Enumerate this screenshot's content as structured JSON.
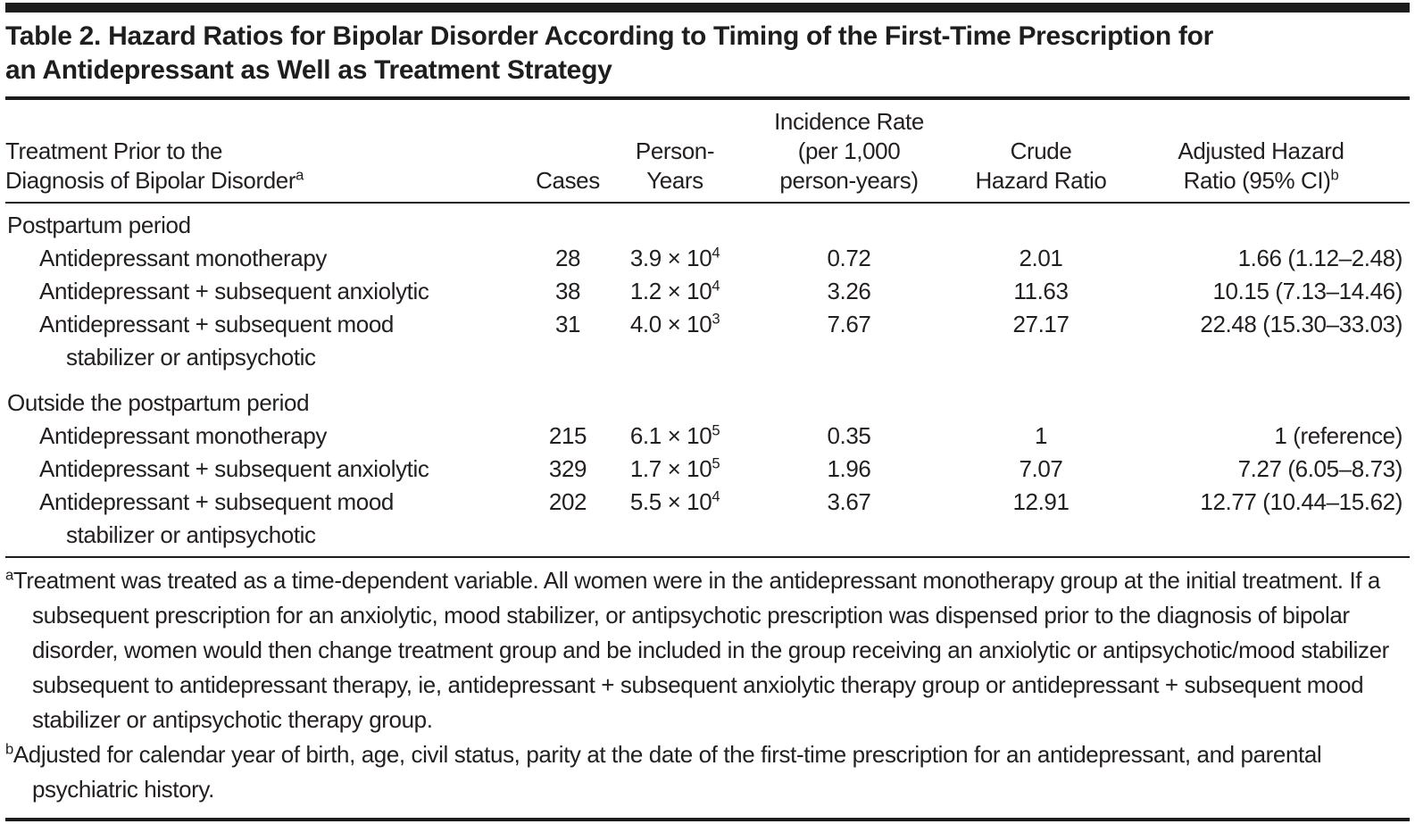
{
  "title": {
    "line1": "Table 2. Hazard Ratios for Bipolar Disorder According to Timing of the First-Time Prescription for",
    "line2": "an Antidepressant as Well as Treatment Strategy"
  },
  "header": {
    "col_treatment": {
      "line1": "Treatment Prior to the",
      "line2": "Diagnosis of Bipolar Disorder",
      "sup": "a"
    },
    "col_cases": "Cases",
    "col_person_years": {
      "line1": "Person-",
      "line2": "Years"
    },
    "col_incidence": {
      "line1": "Incidence Rate",
      "line2": "(per 1,000",
      "line3": "person-years)"
    },
    "col_crude": {
      "line1": "Crude",
      "line2": "Hazard Ratio"
    },
    "col_adjusted": {
      "line1": "Adjusted Hazard",
      "line2": "Ratio (95% CI)",
      "sup": "b"
    }
  },
  "groups": [
    {
      "label": "Postpartum period",
      "rows": [
        {
          "label": "Antidepressant monotherapy",
          "label2": "",
          "cases": "28",
          "py_base": "3.9 × 10",
          "py_exp": "4",
          "incidence": "0.72",
          "crude": "2.01",
          "adjusted": "1.66 (1.12–2.48)"
        },
        {
          "label": "Antidepressant + subsequent anxiolytic",
          "label2": "",
          "cases": "38",
          "py_base": "1.2 × 10",
          "py_exp": "4",
          "incidence": "3.26",
          "crude": "11.63",
          "adjusted": "10.15 (7.13–14.46)"
        },
        {
          "label": "Antidepressant + subsequent mood",
          "label2": "stabilizer or antipsychotic",
          "cases": "31",
          "py_base": "4.0 × 10",
          "py_exp": "3",
          "incidence": "7.67",
          "crude": "27.17",
          "adjusted": "22.48 (15.30–33.03)"
        }
      ]
    },
    {
      "label": "Outside the postpartum period",
      "rows": [
        {
          "label": "Antidepressant monotherapy",
          "label2": "",
          "cases": "215",
          "py_base": "6.1 × 10",
          "py_exp": "5",
          "incidence": "0.35",
          "crude": "1",
          "adjusted": "1 (reference)"
        },
        {
          "label": "Antidepressant + subsequent anxiolytic",
          "label2": "",
          "cases": "329",
          "py_base": "1.7 × 10",
          "py_exp": "5",
          "incidence": "1.96",
          "crude": "7.07",
          "adjusted": "7.27 (6.05–8.73)"
        },
        {
          "label": "Antidepressant + subsequent mood",
          "label2": "stabilizer or antipsychotic",
          "cases": "202",
          "py_base": "5.5 × 10",
          "py_exp": "4",
          "incidence": "3.67",
          "crude": "12.91",
          "adjusted": "12.77 (10.44–15.62)"
        }
      ]
    }
  ],
  "footnotes": [
    {
      "marker": "a",
      "text": "Treatment was treated as a time-dependent variable. All women were in the antidepressant monotherapy group at the initial treatment. If a subsequent prescription for an anxiolytic, mood stabilizer, or antipsychotic prescription was dispensed prior to the diagnosis of bipolar disorder, women would then change treatment group and be included in the group receiving an anxiolytic or antipsychotic/mood stabilizer subsequent to antidepressant therapy, ie, antidepressant + subsequent anxiolytic therapy group or antidepressant + subsequent mood stabilizer or antipsychotic therapy group."
    },
    {
      "marker": "b",
      "text": "Adjusted for calendar year of birth, age, civil status, parity at the date of the first-time prescription for an antidepressant, and parental psychiatric history."
    }
  ]
}
